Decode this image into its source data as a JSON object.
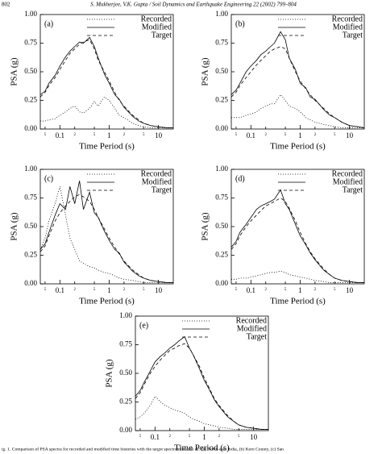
{
  "header": {
    "page": "802",
    "running": "S. Mukherjee, V.K. Gupta / Soil Dynamics and Earthquake Engineering 22 (2002) 799–804"
  },
  "caption": "ig. 1. Comparison of PSA spectra for recorded and modified time histories with the target spectrum in case of: (a) North-east India, (b) Kern County, (c) San",
  "chart_data": [
    {
      "type": "line",
      "panel": "(a)",
      "xlabel": "Time Period (s)",
      "ylabel": "PSA (g)",
      "xscale": "log",
      "x": [
        0.04,
        0.05,
        0.06,
        0.08,
        0.1,
        0.13,
        0.16,
        0.2,
        0.25,
        0.3,
        0.4,
        0.5,
        0.6,
        0.8,
        1,
        1.3,
        1.6,
        2,
        3,
        4,
        5,
        7,
        10,
        15,
        20
      ],
      "xlim": [
        0.04,
        20
      ],
      "ylim": [
        0,
        1
      ],
      "xticks": [
        {
          "value": 0.05,
          "label": "5"
        },
        0.1,
        {
          "value": 0.2,
          "label": "2"
        },
        {
          "value": 0.5,
          "label": "5"
        },
        1,
        {
          "value": 2,
          "label": "2"
        },
        {
          "value": 5,
          "label": "5"
        },
        10
      ],
      "yticks": [
        {
          "value": 0,
          "label": "0.00"
        },
        0.25,
        {
          "value": 0.5,
          "label": "0.50"
        },
        0.75,
        {
          "value": 1,
          "label": "1.00"
        }
      ],
      "series": [
        {
          "name": "Recorded",
          "color": "#000",
          "dash": "1,2",
          "values": [
            0.07,
            0.07,
            0.08,
            0.09,
            0.12,
            0.15,
            0.18,
            0.2,
            0.15,
            0.14,
            0.18,
            0.24,
            0.2,
            0.28,
            0.25,
            0.18,
            0.12,
            0.1,
            0.05,
            0.03,
            0.02,
            0.01,
            0.01,
            0.01,
            0.01
          ]
        },
        {
          "name": "Modified",
          "color": "#000",
          "dash": "none",
          "values": [
            0.3,
            0.33,
            0.4,
            0.47,
            0.55,
            0.63,
            0.68,
            0.72,
            0.76,
            0.75,
            0.8,
            0.72,
            0.62,
            0.48,
            0.4,
            0.3,
            0.26,
            0.19,
            0.11,
            0.07,
            0.05,
            0.03,
            0.02,
            0.01,
            0.01
          ]
        },
        {
          "name": "Target",
          "color": "#000",
          "dash": "4,3",
          "values": [
            0.28,
            0.32,
            0.38,
            0.45,
            0.52,
            0.6,
            0.66,
            0.7,
            0.74,
            0.76,
            0.78,
            0.7,
            0.6,
            0.5,
            0.42,
            0.32,
            0.25,
            0.2,
            0.12,
            0.08,
            0.05,
            0.03,
            0.02,
            0.01,
            0.01
          ]
        }
      ]
    },
    {
      "type": "line",
      "panel": "(b)",
      "xlabel": "Time Period (s)",
      "ylabel": "PSA (g)",
      "xscale": "log",
      "x": [
        0.04,
        0.05,
        0.06,
        0.08,
        0.1,
        0.13,
        0.16,
        0.2,
        0.25,
        0.3,
        0.4,
        0.5,
        0.6,
        0.8,
        1,
        1.3,
        1.6,
        2,
        3,
        4,
        5,
        7,
        10,
        15,
        20
      ],
      "xlim": [
        0.04,
        20
      ],
      "ylim": [
        0,
        1
      ],
      "xticks": [
        {
          "value": 0.05,
          "label": "5"
        },
        0.1,
        {
          "value": 0.2,
          "label": "2"
        },
        {
          "value": 0.5,
          "label": "5"
        },
        1,
        {
          "value": 2,
          "label": "2"
        },
        {
          "value": 5,
          "label": "5"
        },
        10
      ],
      "yticks": [
        {
          "value": 0,
          "label": "0.00"
        },
        0.25,
        {
          "value": 0.5,
          "label": "0.50"
        },
        0.75,
        {
          "value": 1,
          "label": "1.00"
        }
      ],
      "series": [
        {
          "name": "Recorded",
          "color": "#000",
          "dash": "1,2",
          "values": [
            0.1,
            0.1,
            0.1,
            0.12,
            0.13,
            0.15,
            0.18,
            0.2,
            0.22,
            0.22,
            0.3,
            0.25,
            0.2,
            0.18,
            0.15,
            0.1,
            0.08,
            0.06,
            0.04,
            0.03,
            0.02,
            0.01,
            0.01,
            0.01,
            0.01
          ]
        },
        {
          "name": "Modified",
          "color": "#000",
          "dash": "none",
          "values": [
            0.3,
            0.34,
            0.4,
            0.5,
            0.55,
            0.6,
            0.65,
            0.68,
            0.72,
            0.75,
            0.85,
            0.78,
            0.62,
            0.52,
            0.4,
            0.36,
            0.28,
            0.26,
            0.17,
            0.12,
            0.1,
            0.06,
            0.03,
            0.02,
            0.01
          ]
        },
        {
          "name": "Target",
          "color": "#000",
          "dash": "4,3",
          "values": [
            0.28,
            0.32,
            0.38,
            0.45,
            0.5,
            0.56,
            0.6,
            0.64,
            0.68,
            0.7,
            0.72,
            0.7,
            0.62,
            0.5,
            0.42,
            0.35,
            0.3,
            0.25,
            0.18,
            0.13,
            0.1,
            0.06,
            0.03,
            0.02,
            0.01
          ]
        }
      ]
    },
    {
      "type": "line",
      "panel": "(c)",
      "xlabel": "Time Period (s)",
      "ylabel": "PSA (g)",
      "xscale": "log",
      "x": [
        0.04,
        0.05,
        0.06,
        0.08,
        0.1,
        0.13,
        0.16,
        0.2,
        0.25,
        0.3,
        0.4,
        0.5,
        0.6,
        0.8,
        1,
        1.3,
        1.6,
        2,
        3,
        4,
        5,
        7,
        10,
        15,
        20
      ],
      "xlim": [
        0.04,
        20
      ],
      "ylim": [
        0,
        1
      ],
      "xticks": [
        {
          "value": 0.05,
          "label": "5"
        },
        0.1,
        {
          "value": 0.2,
          "label": "2"
        },
        {
          "value": 0.5,
          "label": "5"
        },
        1,
        {
          "value": 2,
          "label": "2"
        },
        {
          "value": 5,
          "label": "5"
        },
        10
      ],
      "yticks": [
        {
          "value": 0,
          "label": "0.00"
        },
        0.25,
        {
          "value": 0.5,
          "label": "0.50"
        },
        0.75,
        {
          "value": 1,
          "label": "1.00"
        }
      ],
      "series": [
        {
          "name": "Recorded",
          "color": "#000",
          "dash": "1,2",
          "values": [
            0.3,
            0.4,
            0.55,
            0.7,
            0.85,
            0.6,
            0.4,
            0.3,
            0.2,
            0.18,
            0.15,
            0.14,
            0.12,
            0.1,
            0.09,
            0.07,
            0.05,
            0.04,
            0.03,
            0.02,
            0.01,
            0.01,
            0.01,
            0.01,
            0.01
          ]
        },
        {
          "name": "Modified",
          "color": "#000",
          "dash": "none",
          "values": [
            0.3,
            0.35,
            0.45,
            0.6,
            0.7,
            0.65,
            0.85,
            0.7,
            0.9,
            0.65,
            0.8,
            0.62,
            0.58,
            0.46,
            0.38,
            0.3,
            0.27,
            0.19,
            0.11,
            0.07,
            0.05,
            0.03,
            0.02,
            0.01,
            0.01
          ]
        },
        {
          "name": "Target",
          "color": "#000",
          "dash": "4,3",
          "values": [
            0.28,
            0.33,
            0.42,
            0.55,
            0.62,
            0.68,
            0.72,
            0.76,
            0.78,
            0.76,
            0.72,
            0.65,
            0.58,
            0.48,
            0.4,
            0.32,
            0.26,
            0.2,
            0.12,
            0.08,
            0.05,
            0.03,
            0.02,
            0.01,
            0.01
          ]
        }
      ]
    },
    {
      "type": "line",
      "panel": "(d)",
      "xlabel": "Time Period (s)",
      "ylabel": "PSA (g)",
      "xscale": "log",
      "x": [
        0.04,
        0.05,
        0.06,
        0.08,
        0.1,
        0.13,
        0.16,
        0.2,
        0.25,
        0.3,
        0.4,
        0.5,
        0.6,
        0.8,
        1,
        1.3,
        1.6,
        2,
        3,
        4,
        5,
        7,
        10,
        15,
        20
      ],
      "xlim": [
        0.04,
        20
      ],
      "ylim": [
        0,
        1
      ],
      "xticks": [
        {
          "value": 0.05,
          "label": "5"
        },
        0.1,
        {
          "value": 0.2,
          "label": "2"
        },
        {
          "value": 0.5,
          "label": "5"
        },
        1,
        {
          "value": 2,
          "label": "2"
        },
        {
          "value": 5,
          "label": "5"
        },
        10
      ],
      "yticks": [
        {
          "value": 0,
          "label": "0.00"
        },
        0.25,
        {
          "value": 0.5,
          "label": "0.50"
        },
        0.75,
        {
          "value": 1,
          "label": "1.00"
        }
      ],
      "series": [
        {
          "name": "Recorded",
          "color": "#000",
          "dash": "1,2",
          "values": [
            0.04,
            0.04,
            0.05,
            0.05,
            0.06,
            0.07,
            0.08,
            0.09,
            0.1,
            0.1,
            0.11,
            0.1,
            0.08,
            0.07,
            0.06,
            0.05,
            0.04,
            0.03,
            0.02,
            0.01,
            0.01,
            0.01,
            0.01,
            0.01,
            0.01
          ]
        },
        {
          "name": "Modified",
          "color": "#000",
          "dash": "none",
          "values": [
            0.32,
            0.37,
            0.45,
            0.52,
            0.58,
            0.65,
            0.68,
            0.7,
            0.72,
            0.74,
            0.82,
            0.7,
            0.65,
            0.52,
            0.42,
            0.34,
            0.27,
            0.21,
            0.12,
            0.08,
            0.05,
            0.03,
            0.02,
            0.01,
            0.01
          ]
        },
        {
          "name": "Target",
          "color": "#000",
          "dash": "4,3",
          "values": [
            0.3,
            0.35,
            0.42,
            0.5,
            0.55,
            0.6,
            0.64,
            0.68,
            0.7,
            0.72,
            0.75,
            0.72,
            0.66,
            0.55,
            0.45,
            0.35,
            0.28,
            0.22,
            0.13,
            0.08,
            0.05,
            0.03,
            0.02,
            0.01,
            0.01
          ]
        }
      ]
    },
    {
      "type": "line",
      "panel": "(e)",
      "xlabel": "Time Period (s)",
      "ylabel": "PSA (g)",
      "xscale": "log",
      "x": [
        0.04,
        0.05,
        0.06,
        0.08,
        0.1,
        0.13,
        0.16,
        0.2,
        0.25,
        0.3,
        0.4,
        0.5,
        0.6,
        0.8,
        1,
        1.3,
        1.6,
        2,
        3,
        4,
        5,
        7,
        10,
        15,
        20
      ],
      "xlim": [
        0.04,
        20
      ],
      "ylim": [
        0,
        1
      ],
      "xticks": [
        {
          "value": 0.05,
          "label": "5"
        },
        0.1,
        {
          "value": 0.2,
          "label": "2"
        },
        {
          "value": 0.5,
          "label": "5"
        },
        1,
        {
          "value": 2,
          "label": "2"
        },
        {
          "value": 5,
          "label": "5"
        },
        10
      ],
      "yticks": [
        {
          "value": 0,
          "label": "0.00"
        },
        0.25,
        {
          "value": 0.5,
          "label": "0.50"
        },
        0.75,
        {
          "value": 1,
          "label": "1.00"
        }
      ],
      "series": [
        {
          "name": "Recorded",
          "color": "#000",
          "dash": "1,2",
          "values": [
            0.1,
            0.12,
            0.15,
            0.22,
            0.3,
            0.25,
            0.22,
            0.2,
            0.18,
            0.17,
            0.15,
            0.12,
            0.1,
            0.08,
            0.06,
            0.05,
            0.04,
            0.03,
            0.02,
            0.01,
            0.01,
            0.01,
            0.01,
            0.01,
            0.01
          ]
        },
        {
          "name": "Modified",
          "color": "#000",
          "dash": "none",
          "values": [
            0.3,
            0.35,
            0.42,
            0.52,
            0.6,
            0.65,
            0.68,
            0.72,
            0.75,
            0.78,
            0.82,
            0.72,
            0.66,
            0.54,
            0.44,
            0.35,
            0.27,
            0.21,
            0.12,
            0.08,
            0.05,
            0.03,
            0.02,
            0.01,
            0.01
          ]
        },
        {
          "name": "Target",
          "color": "#000",
          "dash": "4,3",
          "values": [
            0.28,
            0.33,
            0.4,
            0.5,
            0.56,
            0.62,
            0.66,
            0.7,
            0.72,
            0.74,
            0.76,
            0.72,
            0.66,
            0.56,
            0.46,
            0.36,
            0.28,
            0.22,
            0.13,
            0.08,
            0.05,
            0.03,
            0.02,
            0.01,
            0.01
          ]
        }
      ]
    }
  ]
}
